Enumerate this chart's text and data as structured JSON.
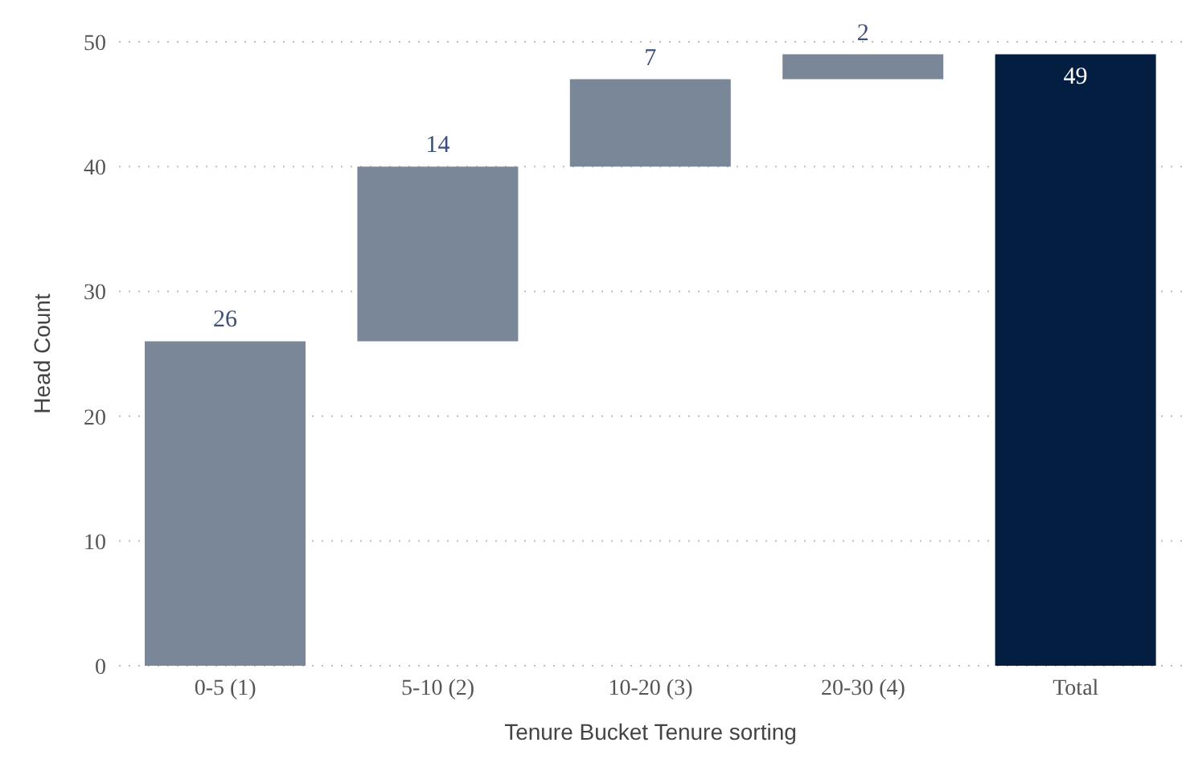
{
  "chart_data": {
    "type": "bar",
    "xlabel": "Tenure Bucket Tenure sorting",
    "ylabel": "Head Count",
    "categories": [
      "0-5 (1)",
      "5-10 (2)",
      "10-20 (3)",
      "20-30 (4)",
      "Total"
    ],
    "values": [
      26,
      14,
      7,
      2,
      49
    ],
    "base": [
      0,
      26,
      40,
      47,
      0
    ],
    "colors": [
      "#7a8799",
      "#7a8799",
      "#7a8799",
      "#7a8799",
      "#041e42"
    ],
    "ylim": [
      0,
      50
    ],
    "yticks": [
      0,
      10,
      20,
      30,
      40,
      50
    ],
    "grid": "y",
    "data_labels": true
  }
}
